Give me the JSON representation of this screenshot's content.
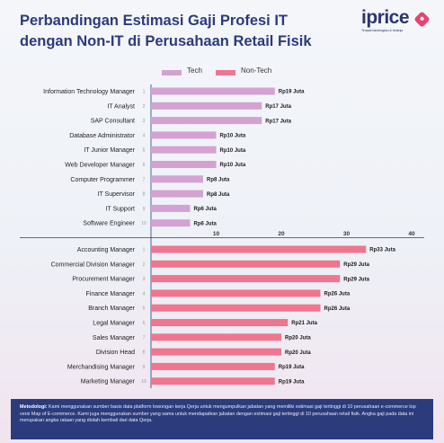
{
  "title": {
    "line1": "Perbandingan Estimasi Gaji Profesi IT",
    "line2": "dengan Non-IT di Perusahaan Retail Fisik"
  },
  "logo": {
    "text": "iprice",
    "tagline": "Tempat bandingkan & belanja",
    "icon": "tag-icon"
  },
  "colors": {
    "tech": "#d4a2d2",
    "non_tech": "#f0758f",
    "title": "#2b3b7c",
    "footer": "#2b3b7c"
  },
  "chart_data": {
    "type": "bar",
    "orientation": "horizontal",
    "legend": {
      "position": "top",
      "entries": [
        "Tech",
        "Non-Tech"
      ]
    },
    "x_axis": {
      "range": [
        0,
        40
      ],
      "ticks": [
        "10",
        "20",
        "30",
        "40"
      ],
      "unit": "Rp Juta"
    },
    "grid": false,
    "series": [
      {
        "name": "Tech",
        "categories": [
          "Information Technology Manager",
          "IT Analyst",
          "SAP Consultant",
          "Database Administrator",
          "IT Junior Manager",
          "Web Developer Manager",
          "Computer Programmer",
          "IT Supervisor",
          "IT Support",
          "Software Engineer"
        ],
        "ranks": [
          "1",
          "2",
          "3",
          "4",
          "5",
          "6",
          "7",
          "8",
          "9",
          "10"
        ],
        "values": [
          19,
          17,
          17,
          10,
          10,
          10,
          8,
          8,
          6,
          6
        ],
        "labels": [
          "Rp19 Juta",
          "Rp17 Juta",
          "Rp17 Juta",
          "Rp10 Juta",
          "Rp10 Juta",
          "Rp10 Juta",
          "Rp8 Juta",
          "Rp8 Juta",
          "Rp6 Juta",
          "Rp6 Juta"
        ]
      },
      {
        "name": "Non-Tech",
        "categories": [
          "Accounting Manager",
          "Commercial Division Manager",
          "Procurement Manager",
          "Finance Manager",
          "Branch Manager",
          "Legal Manager",
          "Sales Manager",
          "Division Head",
          "Merchandising Manager",
          "Marketing Manager"
        ],
        "ranks": [
          "1",
          "2",
          "3",
          "4",
          "5",
          "6",
          "7",
          "8",
          "9",
          "10"
        ],
        "values": [
          33,
          29,
          29,
          26,
          26,
          21,
          20,
          20,
          19,
          19
        ],
        "labels": [
          "Rp33 Juta",
          "Rp29 Juta",
          "Rp29 Juta",
          "Rp26 Juta",
          "Rp26 Juta",
          "Rp21 Juta",
          "Rp20 Juta",
          "Rp20 Juta",
          "Rp19 Juta",
          "Rp19 Juta"
        ]
      }
    ]
  },
  "footer": {
    "label": "Metodologi:",
    "text": "Kami menggunakan sumber basis data platform lowongan kerja Qerja untuk mengumpulkan jabatan yang memiliki estimasi gaji tertinggi di 10 perusahaan e-commerce top versi Map of E-commerce. Kami juga menggunakan sumber yang sama untuk mendapatkan jabatan dengan estimasi gaji tertinggi di 10 perusahaan retail fisik. Angka gaji pada data ini merupakan angka rataan yang diolah kembali dari data Qerja."
  }
}
